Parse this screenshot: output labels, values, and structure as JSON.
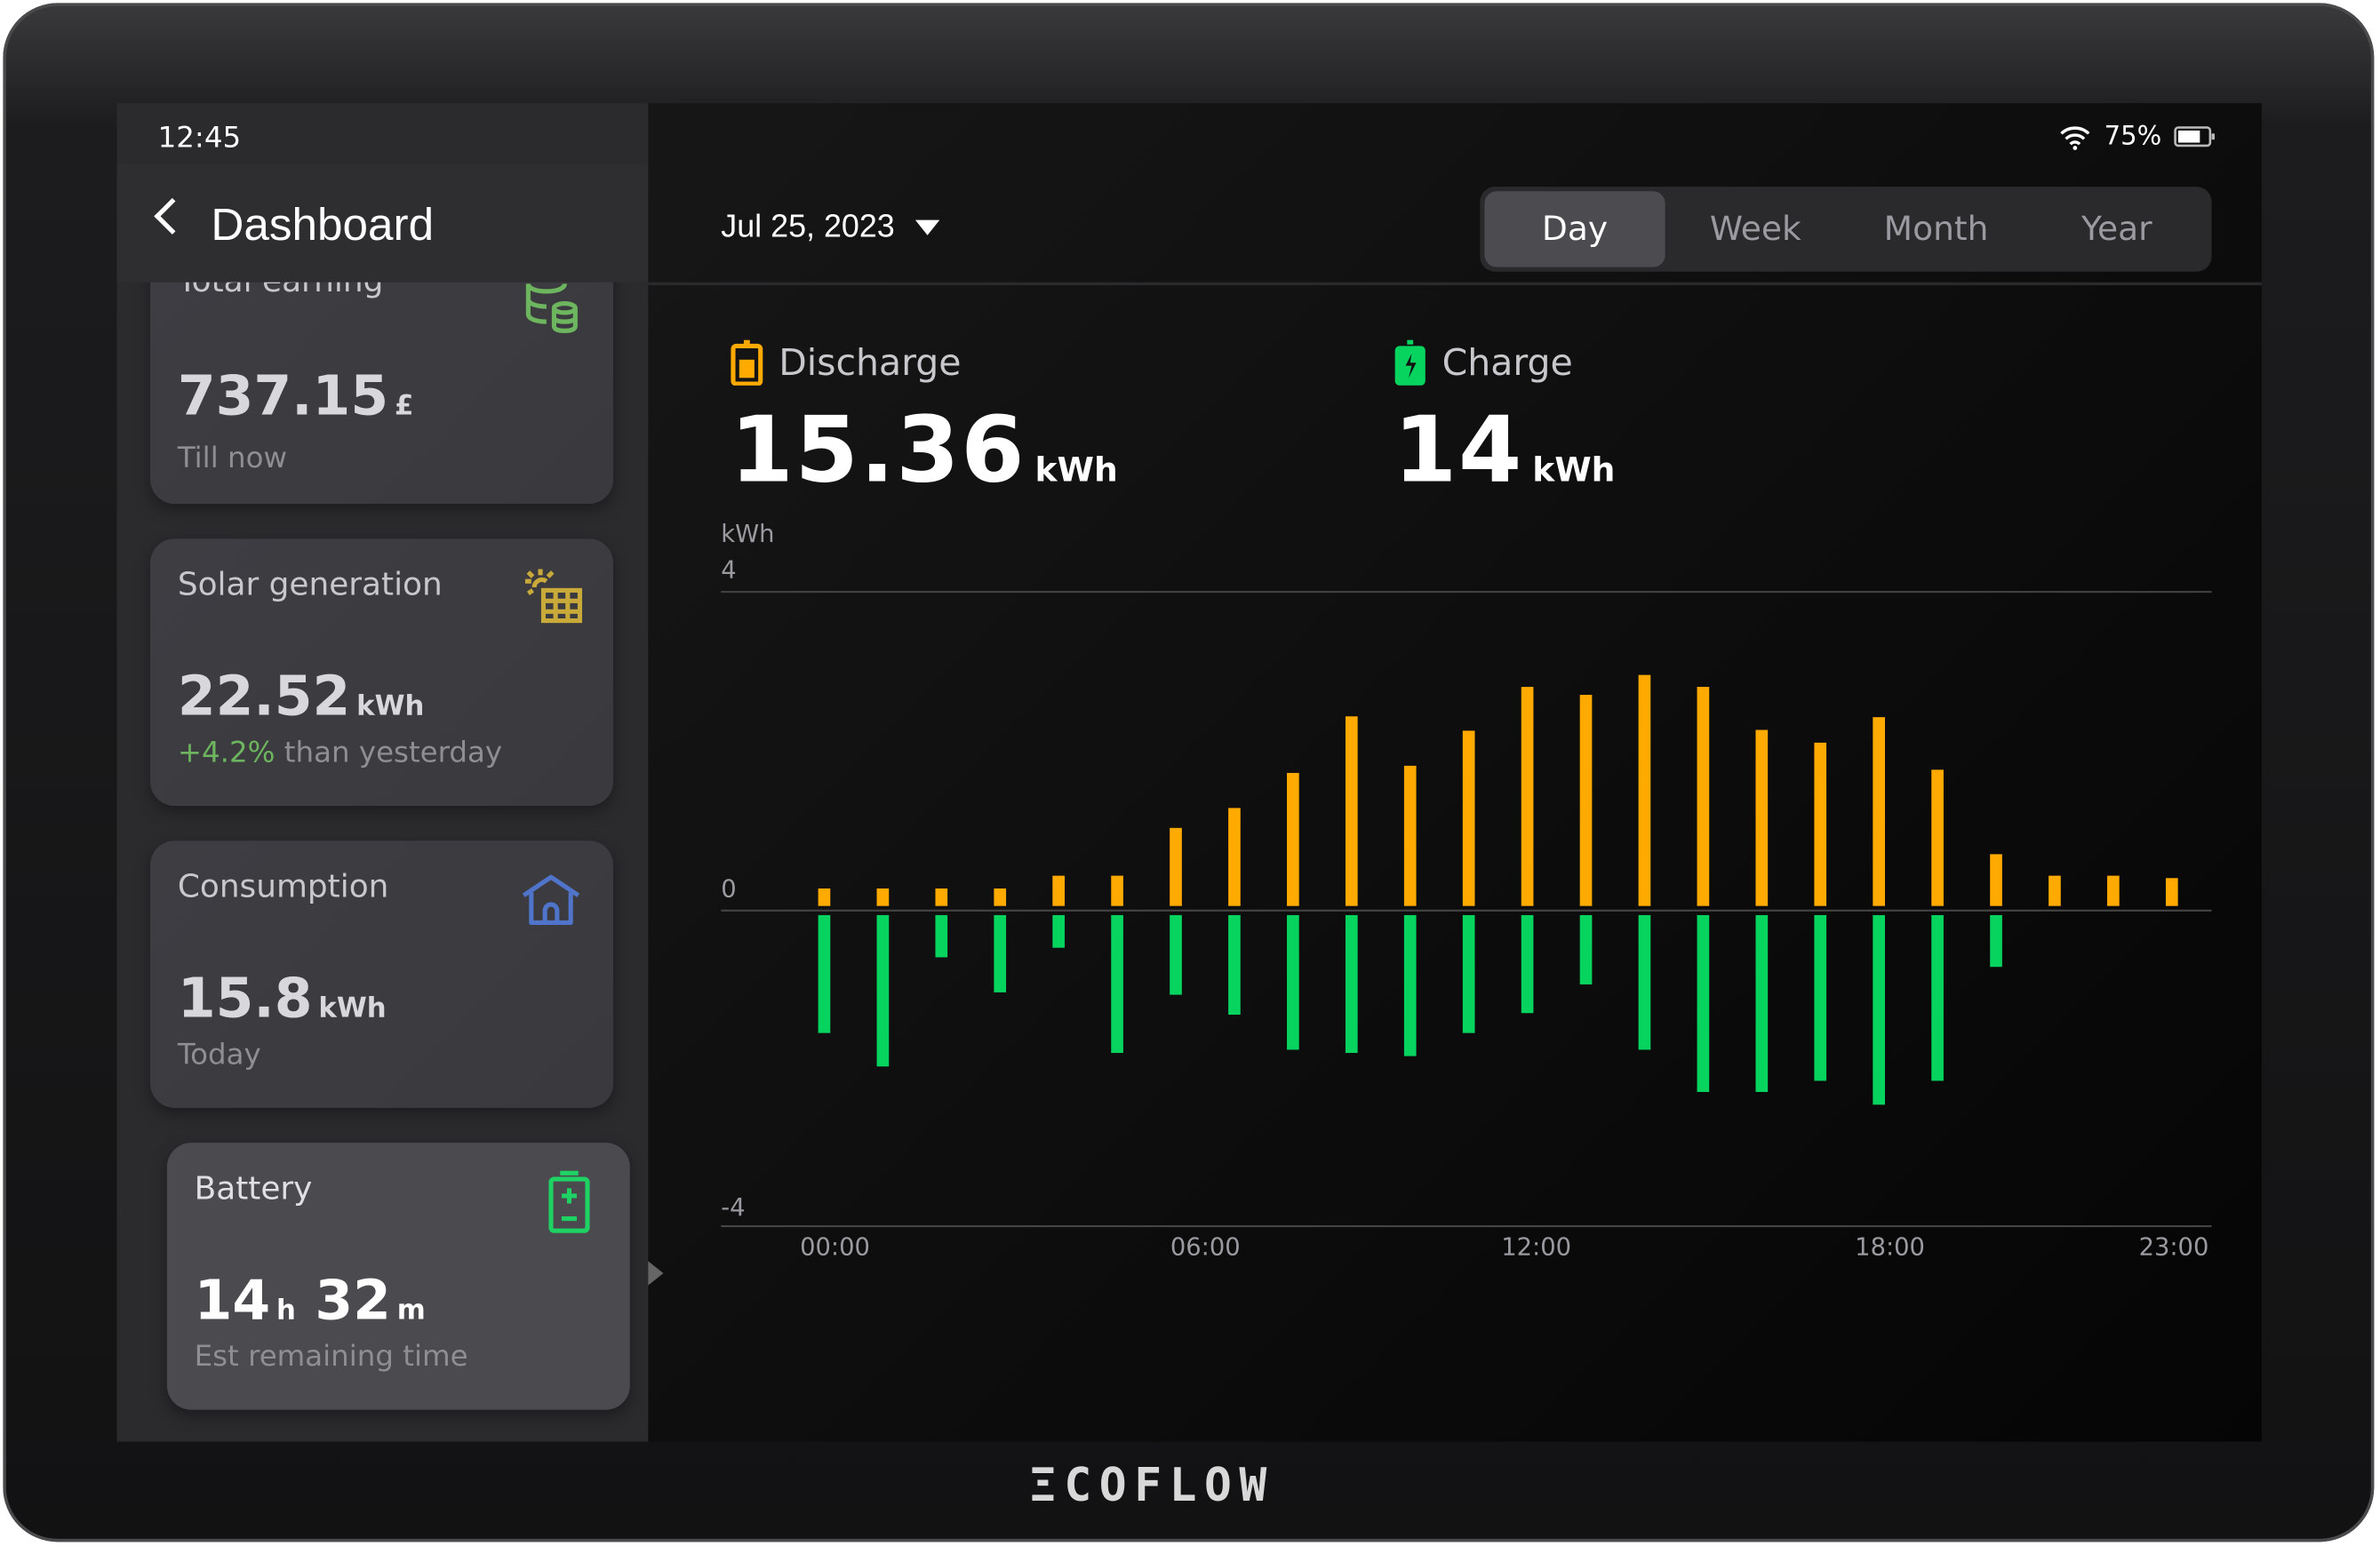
{
  "status_bar": {
    "time": "12:45",
    "battery_percent": "75%",
    "battery_level": 0.75,
    "icons": [
      "wifi-icon",
      "battery-icon"
    ]
  },
  "header": {
    "title": "Dashboard",
    "back_icon": "chevron-left-icon"
  },
  "sidebar": {
    "cards": [
      {
        "label": "Total earning",
        "value": "737.15",
        "unit": "£",
        "sub": "Till now",
        "icon": "coins-icon",
        "icon_color": "#6db55e"
      },
      {
        "label": "Solar generation",
        "value": "22.52",
        "unit": "kWh",
        "sub_highlight": "+4.2%",
        "sub": " than yesterday",
        "icon": "solar-panel-icon",
        "icon_color": "#c9a93a"
      },
      {
        "label": "Consumption",
        "value": "15.8",
        "unit": "kWh",
        "sub": "Today",
        "icon": "house-icon",
        "icon_color": "#4f74c9"
      },
      {
        "label": "Battery",
        "value_h": "14",
        "unit_h": "h",
        "value_m": "32",
        "unit_m": "m",
        "sub": "Est remaining time",
        "icon": "battery-plus-minus-icon",
        "icon_color": "#1ed263"
      }
    ]
  },
  "main": {
    "date": "Jul 25, 2023",
    "periods": [
      "Day",
      "Week",
      "Month",
      "Year"
    ],
    "active_period": "Day",
    "discharge": {
      "label": "Discharge",
      "value": "15.36",
      "unit": "kWh",
      "color": "#ffaa00"
    },
    "charge": {
      "label": "Charge",
      "value": "14",
      "unit": "kWh",
      "color": "#07d35f"
    }
  },
  "chart_data": {
    "type": "bar",
    "ylabel": "kWh",
    "ylim": [
      -4,
      4
    ],
    "yticks": [
      "4",
      "0",
      "-4"
    ],
    "xticks": [
      "00:00",
      "06:00",
      "12:00",
      "18:00",
      "23:00"
    ],
    "x": [
      "00:00",
      "01:00",
      "02:00",
      "03:00",
      "04:00",
      "05:00",
      "06:00",
      "07:00",
      "08:00",
      "09:00",
      "10:00",
      "11:00",
      "12:00",
      "13:00",
      "14:00",
      "15:00",
      "16:00",
      "17:00",
      "18:00",
      "19:00",
      "20:00",
      "21:00",
      "22:00",
      "23:00"
    ],
    "series": [
      {
        "values": [
          0.22,
          0.22,
          0.22,
          0.22,
          0.38,
          0.38,
          0.98,
          1.23,
          1.67,
          2.38,
          1.76,
          2.2,
          2.75,
          2.65,
          2.9,
          2.75,
          2.21,
          2.05,
          2.37,
          1.71,
          0.65,
          0.38,
          0.38,
          0.35
        ],
        "color": "#ffaa00"
      },
      {
        "values": [
          -1.48,
          -1.9,
          -0.53,
          -0.97,
          -0.41,
          -1.73,
          -1.0,
          -1.25,
          -1.69,
          -1.73,
          -1.77,
          -1.48,
          -1.23,
          -0.87,
          -1.69,
          -2.22,
          -2.22,
          -2.08,
          -2.38,
          -2.08,
          -0.65,
          0,
          0,
          0
        ],
        "color": "#07d35f"
      }
    ],
    "grid": true
  },
  "brand": {
    "logo_text": "ECOFLOW"
  }
}
